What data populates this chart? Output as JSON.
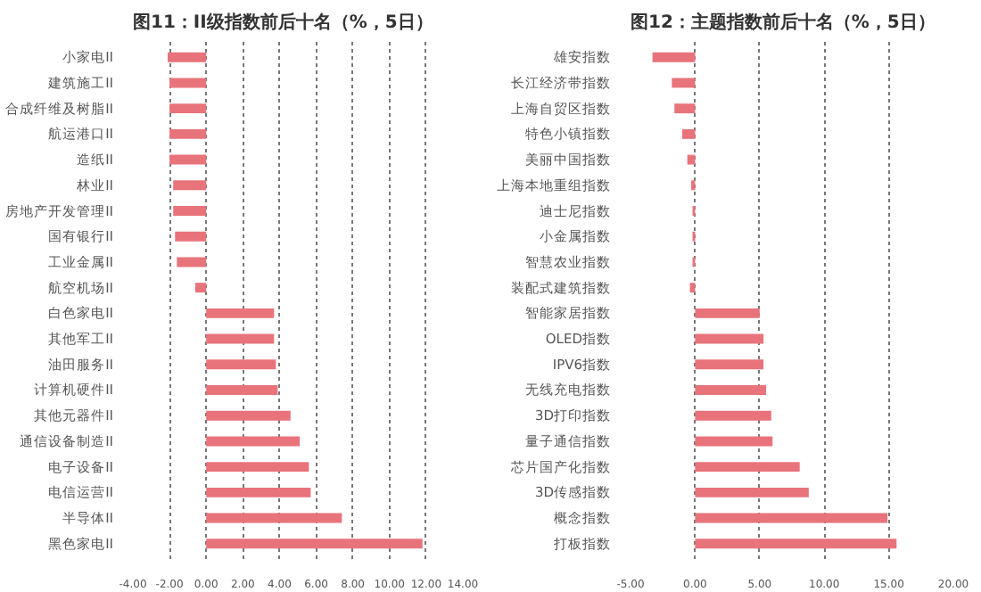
{
  "chart_data": [
    {
      "type": "bar",
      "orientation": "horizontal",
      "title": "图11：II级指数前后十名（%，5日）",
      "categories": [
        "小家电II",
        "建筑施工II",
        "合成纤维及树脂II",
        "航运港口II",
        "造纸II",
        "林业II",
        "房地产开发管理II",
        "国有银行II",
        "工业金属II",
        "航空机场II",
        "白色家电II",
        "其他军工II",
        "油田服务II",
        "计算机硬件II",
        "其他元器件II",
        "通信设备制造II",
        "电子设备II",
        "电信运营II",
        "半导体II",
        "黑色家电II"
      ],
      "values": [
        -2.1,
        -2.0,
        -2.0,
        -2.0,
        -2.0,
        -1.8,
        -1.8,
        -1.7,
        -1.6,
        -0.6,
        3.7,
        3.7,
        3.8,
        3.9,
        4.6,
        5.1,
        5.6,
        5.7,
        7.4,
        11.8
      ],
      "color": "#e8737b",
      "xlim": [
        -4,
        14
      ],
      "xticks": [
        {
          "value": -4,
          "label": "-4.00"
        },
        {
          "value": -2,
          "label": "-2.00"
        },
        {
          "value": 0,
          "label": "0.00"
        },
        {
          "value": 2,
          "label": "2.00"
        },
        {
          "value": 4,
          "label": "4.00"
        },
        {
          "value": 6,
          "label": "6.00"
        },
        {
          "value": 8,
          "label": "8.00"
        },
        {
          "value": 10,
          "label": "10.00"
        },
        {
          "value": 12,
          "label": "12.00"
        },
        {
          "value": 14,
          "label": "14.00"
        }
      ],
      "grid": "x"
    },
    {
      "type": "bar",
      "orientation": "horizontal",
      "title": "图12：主题指数前后十名（%，5日）",
      "categories": [
        "雄安指数",
        "长江经济带指数",
        "上海自贸区指数",
        "特色小镇指数",
        "美丽中国指数",
        "上海本地重组指数",
        "迪士尼指数",
        "小金属指数",
        "智慧农业指数",
        "装配式建筑指数",
        "智能家居指数",
        "OLED指数",
        "IPV6指数",
        "无线充电指数",
        "3D打印指数",
        "量子通信指数",
        "芯片国产化指数",
        "3D传感指数",
        "概念指数",
        "打板指数"
      ],
      "values": [
        -3.3,
        -1.8,
        -1.6,
        -1.0,
        -0.6,
        -0.3,
        -0.2,
        -0.2,
        -0.2,
        -0.4,
        5.0,
        5.3,
        5.3,
        5.5,
        5.9,
        6.0,
        8.1,
        8.8,
        14.9,
        15.6
      ],
      "color": "#e8737b",
      "xlim": [
        -5,
        20
      ],
      "xticks": [
        {
          "value": -5,
          "label": "-5.00"
        },
        {
          "value": 0,
          "label": "0.00"
        },
        {
          "value": 5,
          "label": "5.00"
        },
        {
          "value": 10,
          "label": "10.00"
        },
        {
          "value": 15,
          "label": "15.00"
        },
        {
          "value": 20,
          "label": "20.00"
        }
      ],
      "grid": "x"
    }
  ]
}
